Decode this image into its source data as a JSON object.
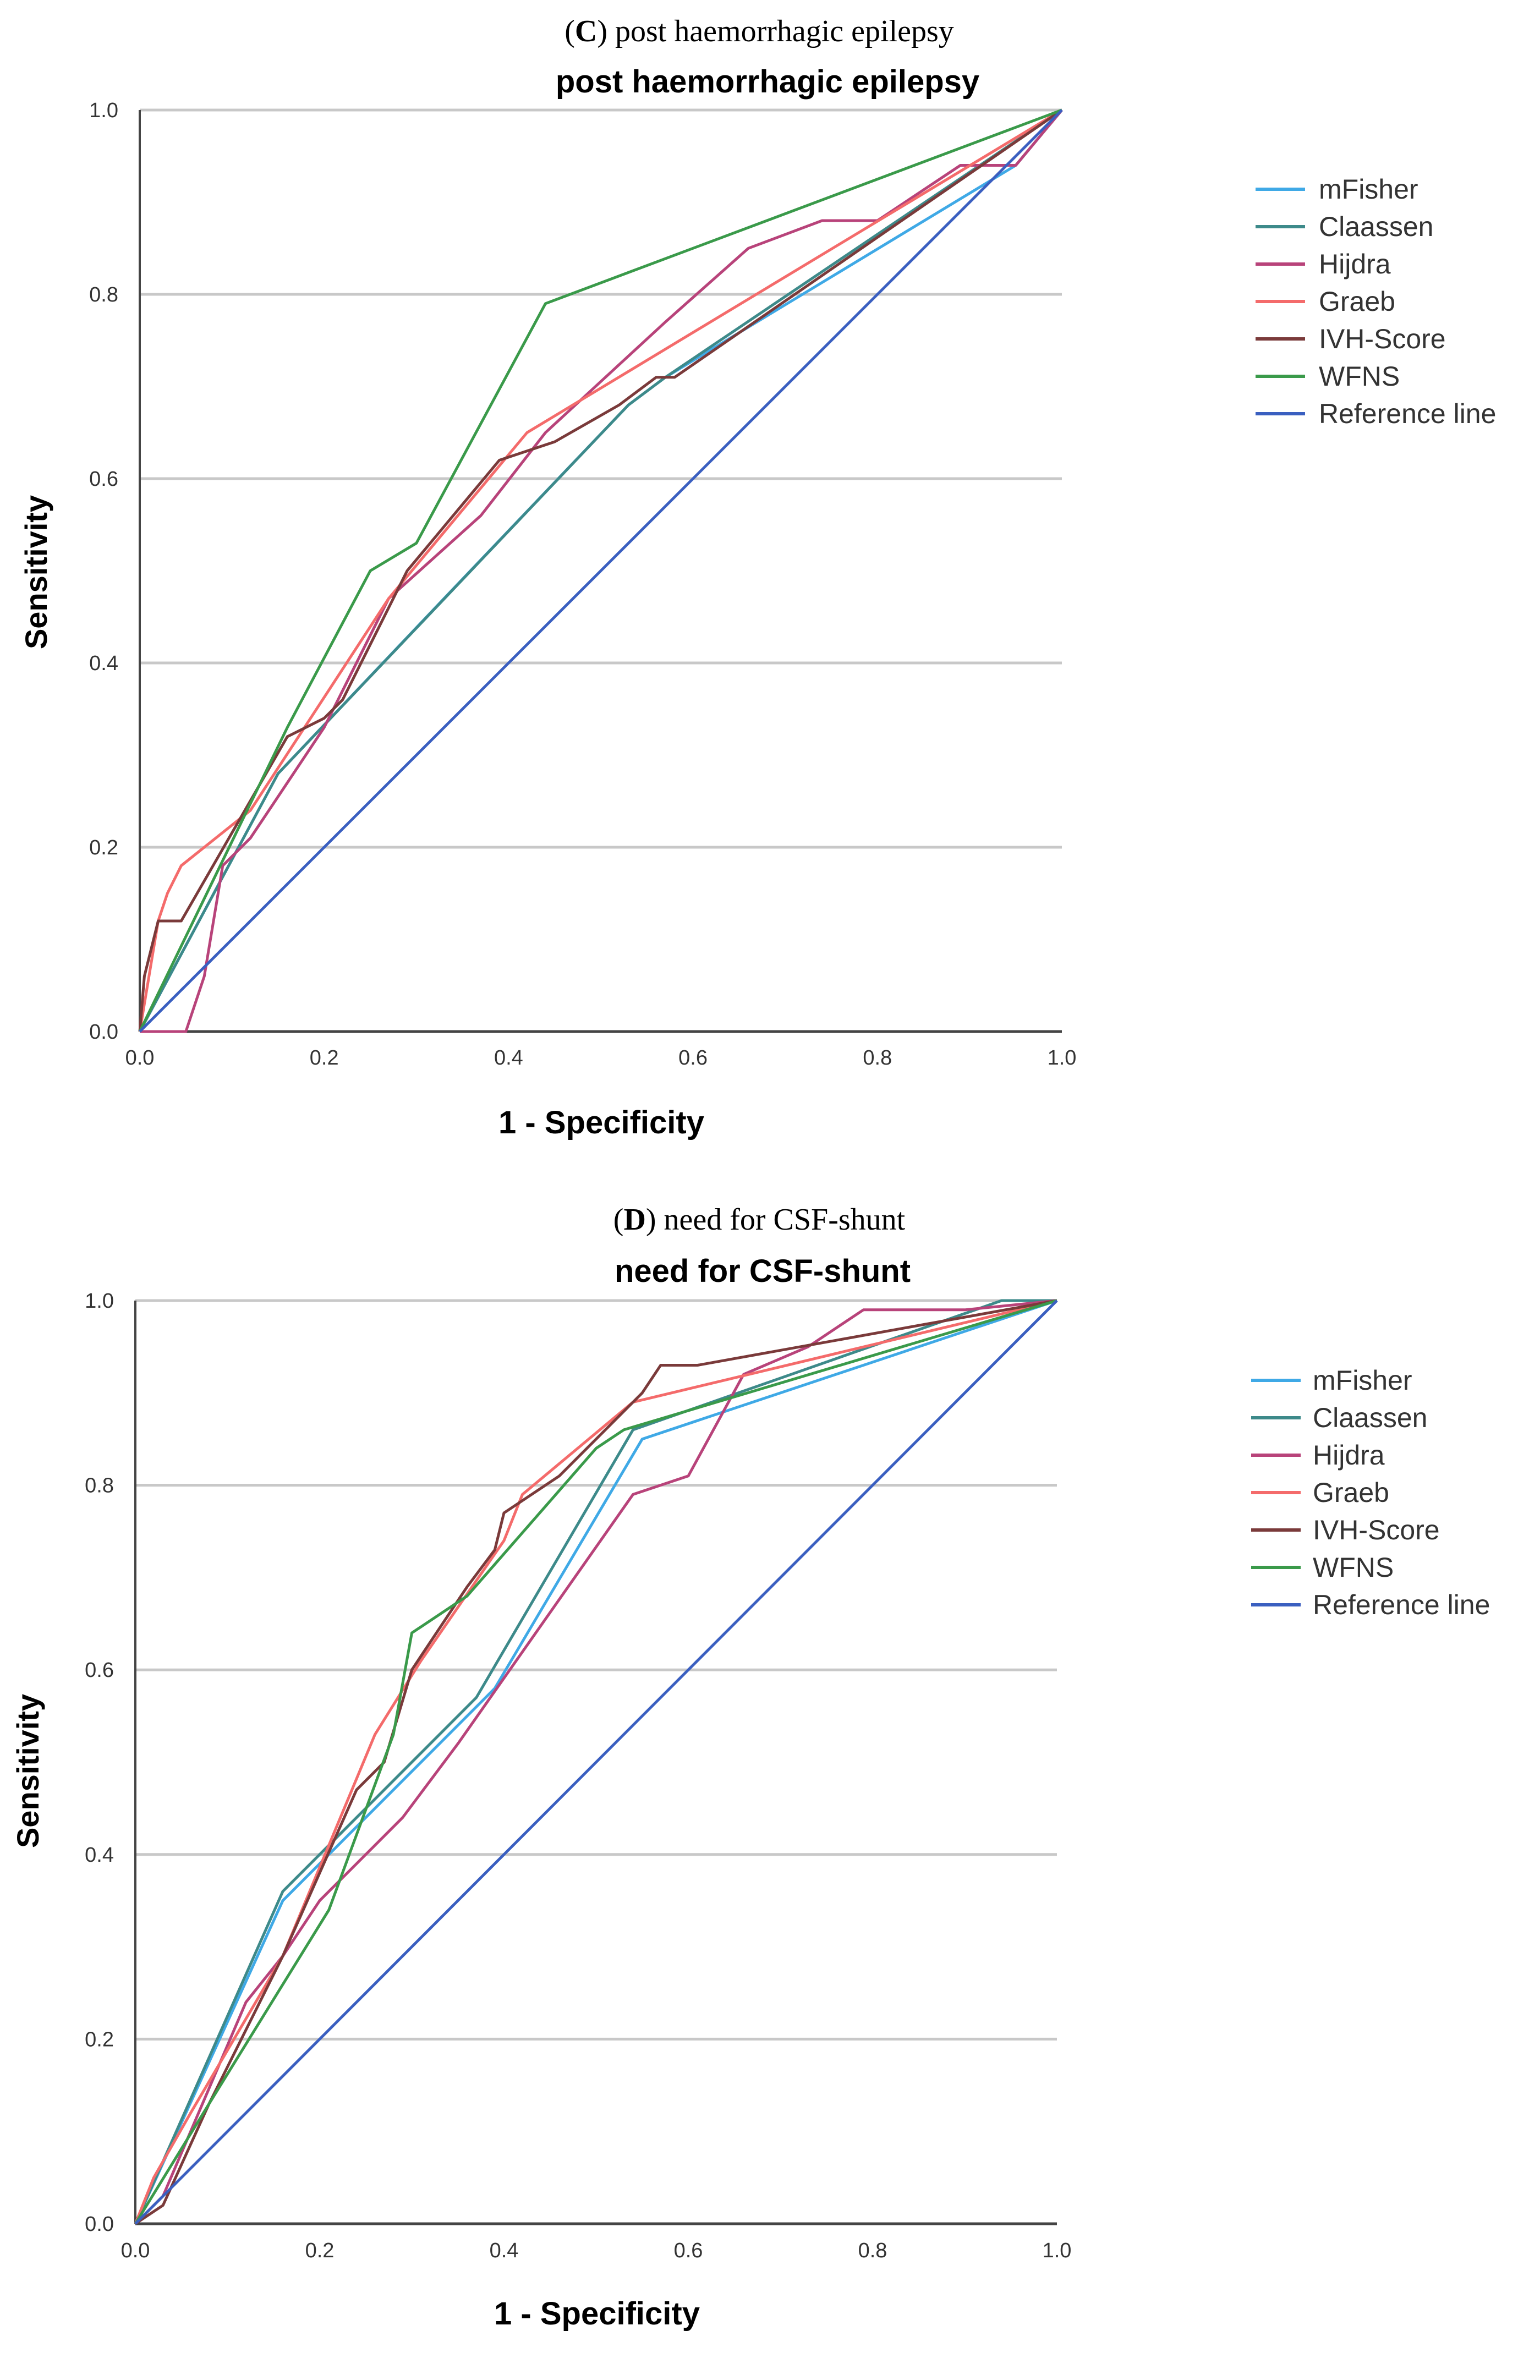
{
  "colors": {
    "mFisher": "#3fa9e6",
    "Claassen": "#3d8a8a",
    "Hijdra": "#b8437a",
    "Graeb": "#f46b6b",
    "IVH-Score": "#7a3a3a",
    "WFNS": "#3a9a4a",
    "Reference line": "#3a5fc0",
    "grid": "#c8c8c8",
    "axis": "#444444"
  },
  "chart_data": [
    {
      "type": "line",
      "panel_letter": "C",
      "caption": "post haemorrhagic epilepsy",
      "title": "post haemorrhagic epilepsy",
      "xlabel": "1 - Specificity",
      "ylabel": "Sensitivity",
      "xlim": [
        0,
        1
      ],
      "ylim": [
        0,
        1
      ],
      "xticks": [
        "0.0",
        "0.2",
        "0.4",
        "0.6",
        "0.8",
        "1.0"
      ],
      "yticks": [
        "0.0",
        "0.2",
        "0.4",
        "0.6",
        "0.8",
        "1.0"
      ],
      "grid": "horizontal",
      "legend_position": "right",
      "series": [
        {
          "name": "mFisher",
          "points": [
            [
              0,
              0
            ],
            [
              0.15,
              0.28
            ],
            [
              0.33,
              0.47
            ],
            [
              0.53,
              0.68
            ],
            [
              0.57,
              0.71
            ],
            [
              0.95,
              0.94
            ],
            [
              1,
              1
            ]
          ]
        },
        {
          "name": "Claassen",
          "points": [
            [
              0,
              0
            ],
            [
              0.15,
              0.28
            ],
            [
              0.53,
              0.68
            ],
            [
              0.57,
              0.71
            ],
            [
              1,
              1
            ]
          ]
        },
        {
          "name": "Hijdra",
          "points": [
            [
              0,
              0
            ],
            [
              0.05,
              0
            ],
            [
              0.07,
              0.06
            ],
            [
              0.09,
              0.18
            ],
            [
              0.12,
              0.21
            ],
            [
              0.16,
              0.27
            ],
            [
              0.2,
              0.33
            ],
            [
              0.27,
              0.47
            ],
            [
              0.37,
              0.56
            ],
            [
              0.44,
              0.65
            ],
            [
              0.57,
              0.77
            ],
            [
              0.66,
              0.85
            ],
            [
              0.74,
              0.88
            ],
            [
              0.8,
              0.88
            ],
            [
              0.89,
              0.94
            ],
            [
              0.95,
              0.94
            ],
            [
              1,
              1
            ]
          ]
        },
        {
          "name": "Graeb",
          "points": [
            [
              0,
              0
            ],
            [
              0.01,
              0.06
            ],
            [
              0.02,
              0.12
            ],
            [
              0.03,
              0.15
            ],
            [
              0.045,
              0.18
            ],
            [
              0.12,
              0.24
            ],
            [
              0.27,
              0.47
            ],
            [
              0.42,
              0.65
            ],
            [
              1,
              1
            ]
          ]
        },
        {
          "name": "IVH-Score",
          "points": [
            [
              0,
              0
            ],
            [
              0.005,
              0.06
            ],
            [
              0.02,
              0.12
            ],
            [
              0.045,
              0.12
            ],
            [
              0.16,
              0.32
            ],
            [
              0.2,
              0.34
            ],
            [
              0.22,
              0.36
            ],
            [
              0.29,
              0.5
            ],
            [
              0.39,
              0.62
            ],
            [
              0.45,
              0.64
            ],
            [
              0.52,
              0.68
            ],
            [
              0.56,
              0.71
            ],
            [
              0.58,
              0.71
            ],
            [
              1,
              1
            ]
          ]
        },
        {
          "name": "WFNS",
          "points": [
            [
              0,
              0
            ],
            [
              0.16,
              0.33
            ],
            [
              0.25,
              0.5
            ],
            [
              0.3,
              0.53
            ],
            [
              0.44,
              0.79
            ],
            [
              1,
              1
            ]
          ]
        },
        {
          "name": "Reference line",
          "points": [
            [
              0,
              0
            ],
            [
              1,
              1
            ]
          ]
        }
      ]
    },
    {
      "type": "line",
      "panel_letter": "D",
      "caption": "need for CSF-shunt",
      "title": "need for CSF-shunt",
      "xlabel": "1 - Specificity",
      "ylabel": "Sensitivity",
      "xlim": [
        0,
        1
      ],
      "ylim": [
        0,
        1
      ],
      "xticks": [
        "0.0",
        "0.2",
        "0.4",
        "0.6",
        "0.8",
        "1.0"
      ],
      "yticks": [
        "0.0",
        "0.2",
        "0.4",
        "0.6",
        "0.8",
        "1.0"
      ],
      "grid": "horizontal",
      "legend_position": "right",
      "series": [
        {
          "name": "mFisher",
          "points": [
            [
              0,
              0
            ],
            [
              0.16,
              0.35
            ],
            [
              0.39,
              0.58
            ],
            [
              0.55,
              0.85
            ],
            [
              1,
              1
            ]
          ]
        },
        {
          "name": "Claassen",
          "points": [
            [
              0,
              0
            ],
            [
              0.16,
              0.36
            ],
            [
              0.37,
              0.57
            ],
            [
              0.54,
              0.86
            ],
            [
              0.94,
              1
            ],
            [
              1,
              1
            ]
          ]
        },
        {
          "name": "Hijdra",
          "points": [
            [
              0,
              0
            ],
            [
              0.03,
              0.03
            ],
            [
              0.06,
              0.1
            ],
            [
              0.12,
              0.24
            ],
            [
              0.16,
              0.29
            ],
            [
              0.2,
              0.35
            ],
            [
              0.29,
              0.44
            ],
            [
              0.35,
              0.52
            ],
            [
              0.54,
              0.79
            ],
            [
              0.6,
              0.81
            ],
            [
              0.66,
              0.92
            ],
            [
              0.73,
              0.95
            ],
            [
              0.79,
              0.99
            ],
            [
              0.9,
              0.99
            ],
            [
              1,
              1
            ]
          ]
        },
        {
          "name": "Graeb",
          "points": [
            [
              0,
              0
            ],
            [
              0.02,
              0.05
            ],
            [
              0.06,
              0.12
            ],
            [
              0.16,
              0.29
            ],
            [
              0.26,
              0.53
            ],
            [
              0.31,
              0.61
            ],
            [
              0.4,
              0.74
            ],
            [
              0.42,
              0.79
            ],
            [
              0.54,
              0.89
            ],
            [
              1,
              1
            ]
          ]
        },
        {
          "name": "IVH-Score",
          "points": [
            [
              0,
              0
            ],
            [
              0.03,
              0.02
            ],
            [
              0.08,
              0.13
            ],
            [
              0.16,
              0.29
            ],
            [
              0.24,
              0.47
            ],
            [
              0.27,
              0.5
            ],
            [
              0.3,
              0.6
            ],
            [
              0.36,
              0.69
            ],
            [
              0.39,
              0.73
            ],
            [
              0.4,
              0.77
            ],
            [
              0.46,
              0.81
            ],
            [
              0.55,
              0.9
            ],
            [
              0.57,
              0.93
            ],
            [
              0.61,
              0.93
            ],
            [
              1,
              1
            ]
          ]
        },
        {
          "name": "WFNS",
          "points": [
            [
              0,
              0
            ],
            [
              0.08,
              0.13
            ],
            [
              0.21,
              0.34
            ],
            [
              0.28,
              0.53
            ],
            [
              0.3,
              0.64
            ],
            [
              0.36,
              0.68
            ],
            [
              0.5,
              0.84
            ],
            [
              0.53,
              0.86
            ],
            [
              1,
              1
            ]
          ]
        },
        {
          "name": "Reference line",
          "points": [
            [
              0,
              0
            ],
            [
              1,
              1
            ]
          ]
        }
      ]
    }
  ]
}
